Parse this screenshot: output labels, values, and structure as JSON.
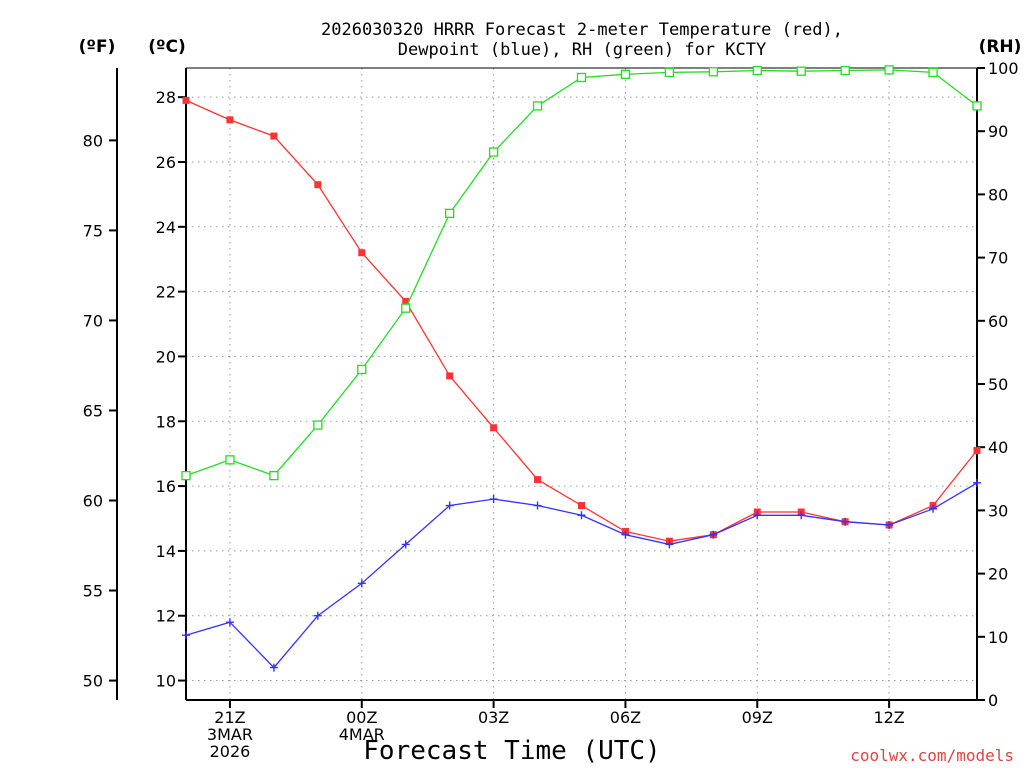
{
  "chart_data": {
    "type": "line",
    "title": [
      "2026030320 HRRR Forecast 2-meter Temperature (red),",
      "Dewpoint (blue), RH (green) for KCTY"
    ],
    "xlabel": "Forecast Time (UTC)",
    "unit_labels": {
      "fahrenheit": "(ºF)",
      "celsius": "(ºC)",
      "rh": "(RH)"
    },
    "x_hours_from_20z": [
      0,
      1,
      2,
      3,
      4,
      5,
      6,
      7,
      8,
      9,
      10,
      11,
      12,
      13,
      14,
      15,
      16,
      17,
      18
    ],
    "x_ticks": [
      {
        "hour": 1,
        "lines": [
          "21Z",
          "3MAR",
          "2026"
        ]
      },
      {
        "hour": 4,
        "lines": [
          "00Z",
          "4MAR"
        ]
      },
      {
        "hour": 7,
        "lines": [
          "03Z"
        ]
      },
      {
        "hour": 10,
        "lines": [
          "06Z"
        ]
      },
      {
        "hour": 13,
        "lines": [
          "09Z"
        ]
      },
      {
        "hour": 16,
        "lines": [
          "12Z"
        ]
      }
    ],
    "celsius_axis": {
      "ylim": [
        9.4,
        28.9
      ],
      "ticks": [
        10,
        12,
        14,
        16,
        18,
        20,
        22,
        24,
        26,
        28
      ]
    },
    "fahrenheit_axis": {
      "ticks": [
        50,
        55,
        60,
        65,
        70,
        75,
        80
      ]
    },
    "rh_axis": {
      "ylim": [
        0,
        100
      ],
      "ticks": [
        0,
        10,
        20,
        30,
        40,
        50,
        60,
        70,
        80,
        90,
        100
      ]
    },
    "series": [
      {
        "name": "Temperature",
        "units": "C",
        "color": "#ff3333",
        "marker": "filled-square",
        "values": [
          27.9,
          27.3,
          26.8,
          25.3,
          23.2,
          21.7,
          19.4,
          17.8,
          16.2,
          15.4,
          14.6,
          14.3,
          14.5,
          15.2,
          15.2,
          14.9,
          14.8,
          15.4,
          17.1
        ]
      },
      {
        "name": "Dewpoint",
        "units": "C",
        "color": "#3333ff",
        "marker": "plus",
        "values": [
          11.4,
          11.8,
          10.4,
          12.0,
          13.0,
          14.2,
          15.4,
          15.6,
          15.4,
          15.1,
          14.5,
          14.2,
          14.5,
          15.1,
          15.1,
          14.9,
          14.8,
          15.3,
          16.1
        ]
      },
      {
        "name": "RH",
        "units": "%",
        "color": "#22dd22",
        "marker": "open-square",
        "values": [
          35.5,
          38,
          35.5,
          43.5,
          52.3,
          62.0,
          77.0,
          86.7,
          94.0,
          98.5,
          99.0,
          99.3,
          99.4,
          99.6,
          99.5,
          99.6,
          99.7,
          99.3,
          94.0
        ]
      }
    ]
  },
  "credit": {
    "text": "coolwx.com/models",
    "color": "#dd4444"
  }
}
